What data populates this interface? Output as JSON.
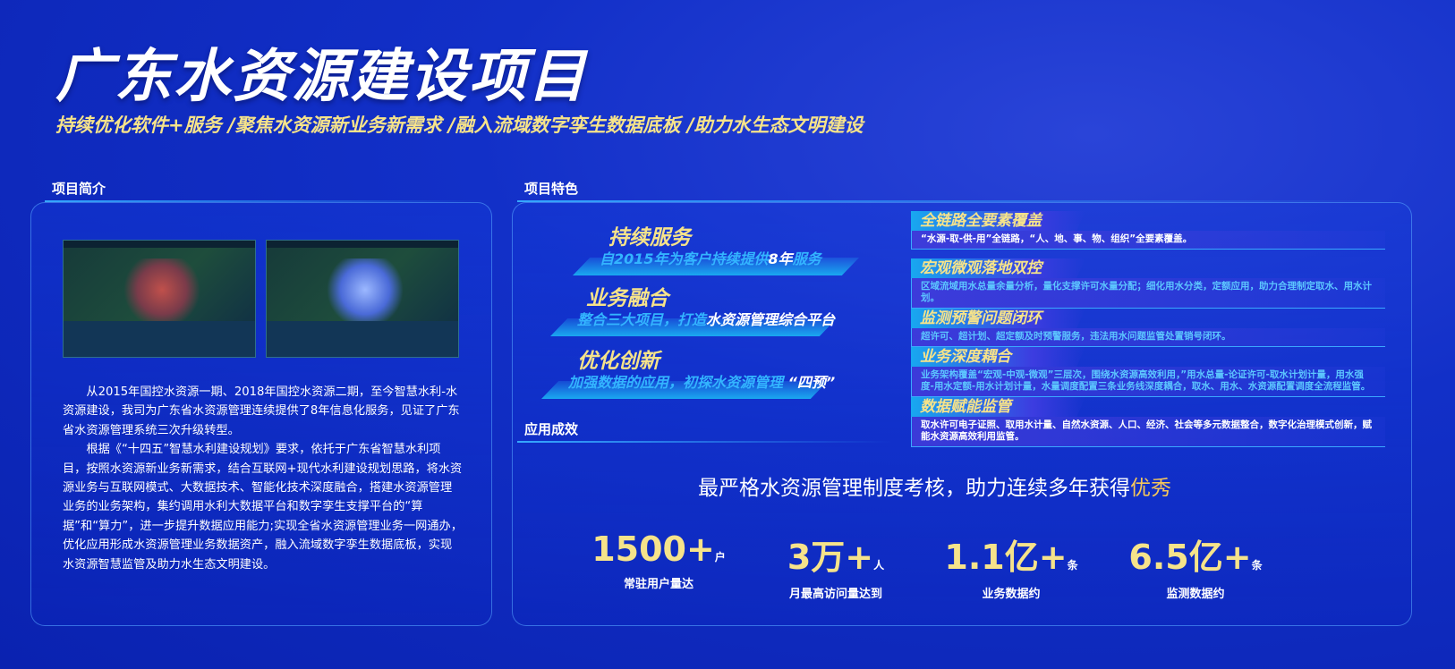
{
  "title": "广东水资源建设项目",
  "subtitle": "持续优化软件+服务 /聚焦水资源新业务新需求 /融入流域数字孪生数据底板 /助力水生态文明建设",
  "intro": {
    "heading": "项目简介",
    "p1": "从2015年国控水资源一期、2018年国控水资源二期，至今智慧水利-水资源建设，我司为广东省水资源管理连续提供了8年信息化服务，见证了广东省水资源管理系统三次升级转型。",
    "p2": "根据《“十四五”智慧水利建设规划》要求，依托于广东省智慧水利项目，按照水资源新业务新需求，结合互联网+现代水利建设规划思路，将水资源业务与互联网模式、大数据技术、智能化技术深度融合，搭建水资源管理业务的业务架构，集约调用水利大数据平台和数字孪生支撑平台的“算据”和“算力”，进一步提升数据应用能力;实现全省水资源管理业务一网通办，优化应用形成水资源管理业务数据资产，融入流域数字孪生数据底板，实现水资源智慧监管及助力水生态文明建设。"
  },
  "features": {
    "heading": "项目特色",
    "items": [
      {
        "title": "持续服务",
        "sub": "自2015年为客户持续提供",
        "hl": "8年",
        "tail": "服务"
      },
      {
        "title": "业务融合",
        "sub": "整合三大项目，打造",
        "hl": "水资源管理综合平台",
        "tail": ""
      },
      {
        "title": "优化创新",
        "sub": "加强数据的应用，初探水资源管理",
        "hl": " “四预”",
        "tail": ""
      }
    ],
    "cards": [
      {
        "title": "全链路全要素覆盖",
        "text": "“水源-取-供-用”全链路，“人、地、事、物、组织”全要素覆盖。"
      },
      {
        "title": "宏观微观落地双控",
        "text": "区域流域用水总量余量分析，量化支撑许可水量分配；细化用水分类，定额应用，助力合理制定取水、用水计划。"
      },
      {
        "title": "监测预警问题闭环",
        "text": "超许可、超计划、超定额及时预警服务，违法用水问题监管处置销号闭环。"
      },
      {
        "title": "业务深度耦合",
        "text": "业务架构覆盖“宏观-中观-微观”三层次，围绕水资源高效利用，”用水总量-论证许可-取水计划计量，用水强度-用水定额-用水计划计量，水量调度配置三条业务线深度耦合，取水、用水、水资源配置调度全流程监管。"
      },
      {
        "title": "数据赋能监管",
        "text": "取水许可电子证照、取用水计量、自然水资源、人口、经济、社会等多元数据整合，数字化治理模式创新，赋能水资源高效利用监管。"
      }
    ]
  },
  "results": {
    "heading": "应用成效",
    "headline": "最严格水资源管理制度考核，助力连续多年获得",
    "headline_hl": "优秀",
    "stats": [
      {
        "value": "1500+",
        "unit": "户",
        "label": "常驻用户量达"
      },
      {
        "value": "3万+",
        "unit": "人",
        "label": "月最高访问量达到"
      },
      {
        "value": "1.1亿+",
        "unit": "条",
        "label": "业务数据约"
      },
      {
        "value": "6.5亿+",
        "unit": "条",
        "label": "监测数据约"
      }
    ]
  },
  "colors": {
    "accent": "#f6e38a",
    "cyan": "#33b5ff",
    "bg": "#1230c8"
  }
}
